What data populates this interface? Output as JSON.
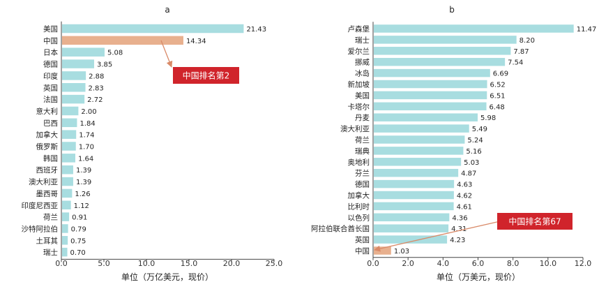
{
  "chart_data": [
    {
      "type": "bar",
      "orientation": "horizontal",
      "panel_label": "a",
      "categories": [
        "美国",
        "中国",
        "日本",
        "德国",
        "印度",
        "英国",
        "法国",
        "意大利",
        "巴西",
        "加拿大",
        "俄罗斯",
        "韩国",
        "西班牙",
        "澳大利亚",
        "墨西哥",
        "印度尼西亚",
        "荷兰",
        "沙特阿拉伯",
        "土耳其",
        "瑞士"
      ],
      "values": [
        21.43,
        14.34,
        5.08,
        3.85,
        2.88,
        2.83,
        2.72,
        2.0,
        1.84,
        1.74,
        1.7,
        1.64,
        1.39,
        1.39,
        1.26,
        1.12,
        0.91,
        0.79,
        0.75,
        0.7
      ],
      "value_labels": [
        "21.43",
        "14.34",
        "5.08",
        "3.85",
        "2.88",
        "2.83",
        "2.72",
        "2.00",
        "1.84",
        "1.74",
        "1.70",
        "1.64",
        "1.39",
        "1.39",
        "1.26",
        "1.12",
        "0.91",
        "0.79",
        "0.75",
        "0.70"
      ],
      "highlight_category": "中国",
      "xlabel": "单位（万亿美元，现价）",
      "xlim": [
        0,
        25
      ],
      "xticks": [
        0,
        5,
        10,
        15,
        20,
        25
      ],
      "xtick_labels": [
        "0.0",
        "5.0",
        "10.0",
        "15.0",
        "20.0",
        "25.0"
      ],
      "annotation": "中国排名第2",
      "colors": {
        "bar": "#a8dde0",
        "highlight": "#e8b08e",
        "callout": "#d0242b",
        "arrow": "#d98a68"
      }
    },
    {
      "type": "bar",
      "orientation": "horizontal",
      "panel_label": "b",
      "categories": [
        "卢森堡",
        "瑞士",
        "爱尔兰",
        "挪威",
        "冰岛",
        "新加坡",
        "美国",
        "卡塔尔",
        "丹麦",
        "澳大利亚",
        "荷兰",
        "瑞典",
        "奥地利",
        "芬兰",
        "德国",
        "加拿大",
        "比利时",
        "以色列",
        "阿拉伯联合酋长国",
        "英国",
        "中国"
      ],
      "values": [
        11.47,
        8.2,
        7.87,
        7.54,
        6.69,
        6.52,
        6.51,
        6.48,
        5.98,
        5.49,
        5.24,
        5.16,
        5.03,
        4.87,
        4.63,
        4.62,
        4.61,
        4.36,
        4.31,
        4.23,
        1.03
      ],
      "value_labels": [
        "11.47",
        "8.20",
        "7.87",
        "7.54",
        "6.69",
        "6.52",
        "6.51",
        "6.48",
        "5.98",
        "5.49",
        "5.24",
        "5.16",
        "5.03",
        "4.87",
        "4.63",
        "4.62",
        "4.61",
        "4.36",
        "4.31",
        "4.23",
        "1.03"
      ],
      "highlight_category": "中国",
      "xlabel": "单位（万美元，现价）",
      "xlim": [
        0,
        12
      ],
      "xticks": [
        0,
        2,
        4,
        6,
        8,
        10,
        12
      ],
      "xtick_labels": [
        "0.0",
        "2.0",
        "4.0",
        "6.0",
        "8.0",
        "10.0",
        "12.0"
      ],
      "annotation": "中国排名第67",
      "colors": {
        "bar": "#a8dde0",
        "highlight": "#e8b08e",
        "callout": "#d0242b",
        "arrow": "#d98a68"
      }
    }
  ]
}
